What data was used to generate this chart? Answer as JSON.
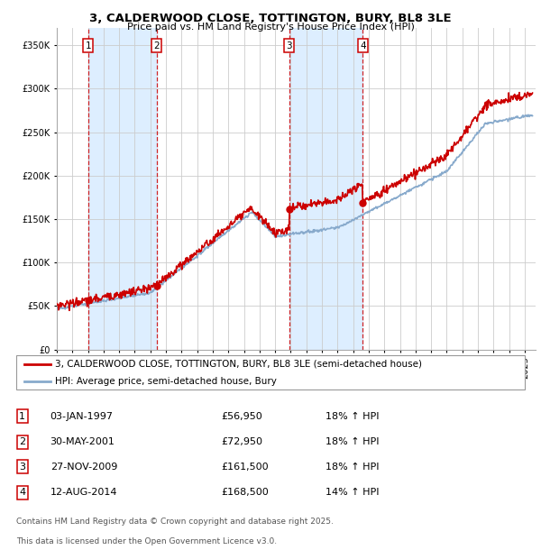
{
  "title": "3, CALDERWOOD CLOSE, TOTTINGTON, BURY, BL8 3LE",
  "subtitle": "Price paid vs. HM Land Registry's House Price Index (HPI)",
  "legend_property": "3, CALDERWOOD CLOSE, TOTTINGTON, BURY, BL8 3LE (semi-detached house)",
  "legend_hpi": "HPI: Average price, semi-detached house, Bury",
  "footer1": "Contains HM Land Registry data © Crown copyright and database right 2025.",
  "footer2": "This data is licensed under the Open Government Licence v3.0.",
  "transactions": [
    {
      "num": 1,
      "date": "03-JAN-1997",
      "price": 56950,
      "year": 1997.01,
      "pct": "18%",
      "dir": "↑"
    },
    {
      "num": 2,
      "date": "30-MAY-2001",
      "price": 72950,
      "year": 2001.41,
      "pct": "18%",
      "dir": "↑"
    },
    {
      "num": 3,
      "date": "27-NOV-2009",
      "price": 161500,
      "year": 2009.9,
      "pct": "18%",
      "dir": "↑"
    },
    {
      "num": 4,
      "date": "12-AUG-2014",
      "price": 168500,
      "year": 2014.62,
      "pct": "14%",
      "dir": "↑"
    }
  ],
  "xmin": 1995,
  "xmax": 2025.7,
  "ymin": 0,
  "ymax": 370000,
  "yticks": [
    0,
    50000,
    100000,
    150000,
    200000,
    250000,
    300000,
    350000
  ],
  "property_color": "#cc0000",
  "hpi_color": "#88aacc",
  "vline_color": "#cc0000",
  "box_color": "#cc0000",
  "shade_color": "#ddeeff",
  "grid_color": "#cccccc",
  "background_color": "#ffffff"
}
